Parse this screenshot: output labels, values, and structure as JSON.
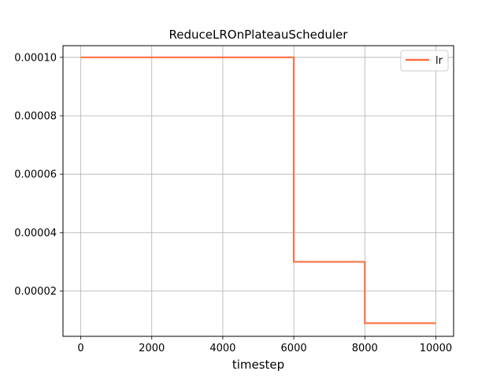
{
  "chart_data": {
    "type": "line",
    "title": "ReduceLROnPlateauScheduler",
    "xlabel": "timestep",
    "ylabel": "lr",
    "xlim": [
      -500,
      10500
    ],
    "ylim": [
      4.5e-06,
      0.000104
    ],
    "xticks": [
      0,
      2000,
      4000,
      6000,
      8000,
      10000
    ],
    "xtick_labels": [
      "0",
      "2000",
      "4000",
      "6000",
      "8000",
      "10000"
    ],
    "yticks": [
      2e-05,
      4e-05,
      6e-05,
      8e-05,
      0.0001
    ],
    "ytick_labels": [
      "0.00002",
      "0.00004",
      "0.00006",
      "0.00008",
      "0.00010"
    ],
    "grid": true,
    "legend_position": "upper right",
    "series": [
      {
        "name": "lr",
        "color": "#ff7043",
        "x": [
          0,
          6000,
          6000,
          8000,
          8000,
          10000
        ],
        "y": [
          0.0001,
          0.0001,
          3e-05,
          3e-05,
          9e-06,
          9e-06
        ]
      }
    ]
  }
}
